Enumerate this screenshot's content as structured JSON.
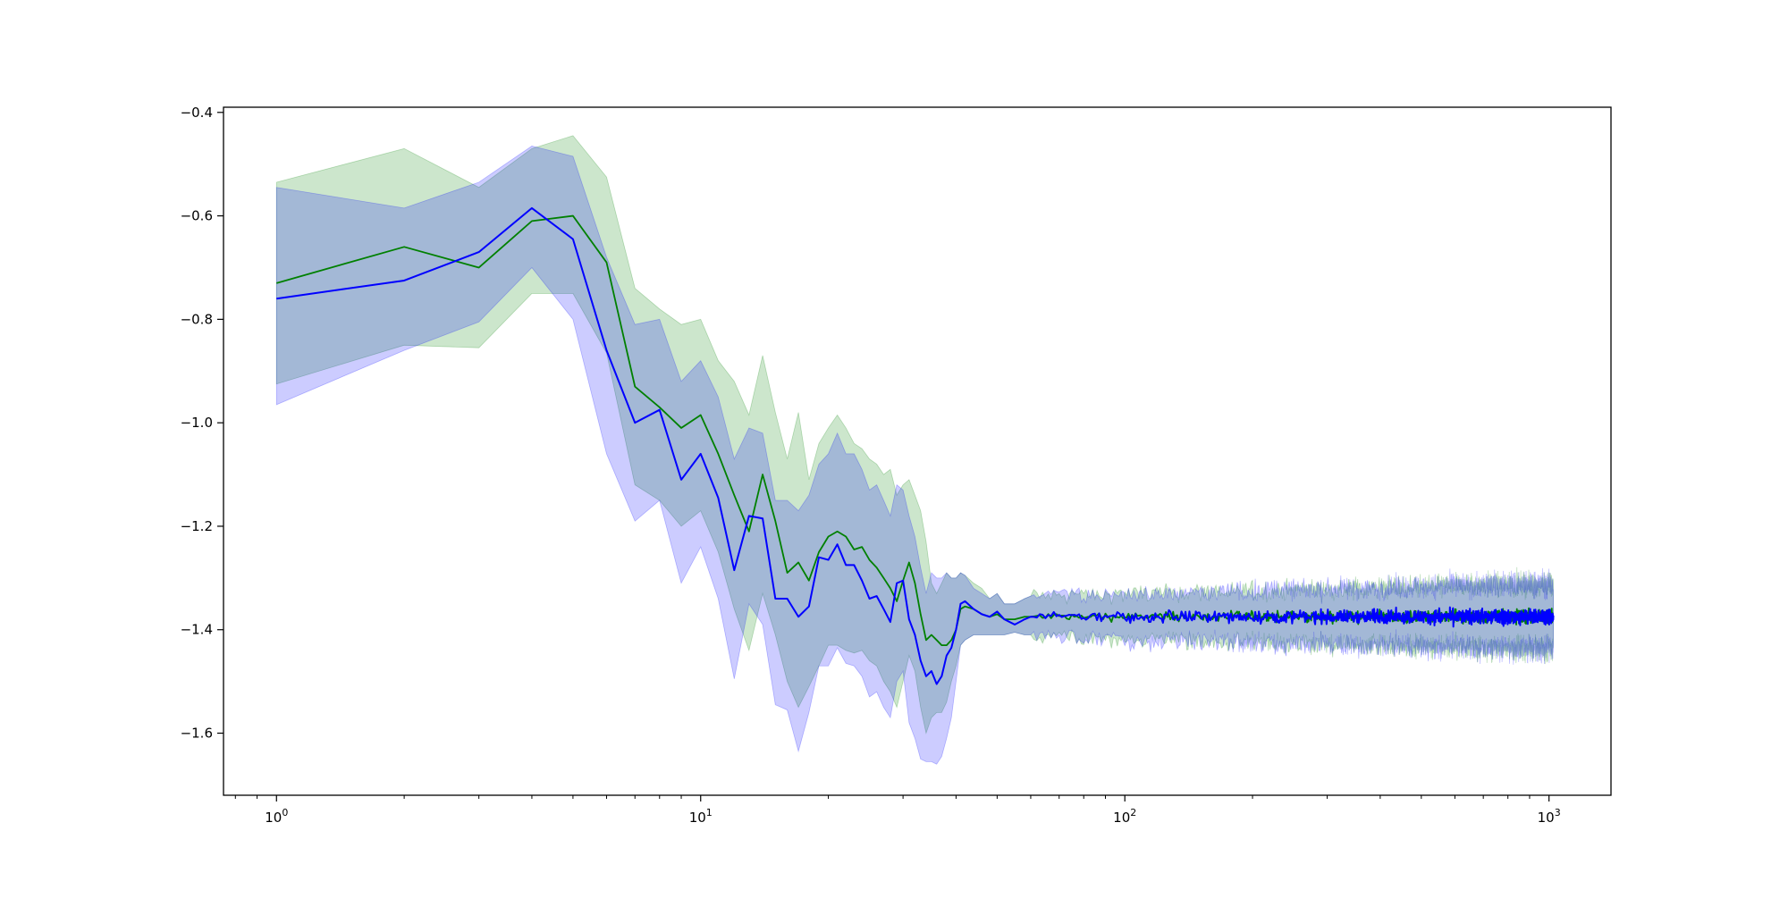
{
  "chart_data": {
    "type": "line",
    "title": "",
    "xlabel": "",
    "ylabel": "",
    "xscale": "log",
    "xlim": [
      0.75,
      1400
    ],
    "ylim": [
      -1.72,
      -0.39
    ],
    "grid": false,
    "legend": "none",
    "x_ticks": [
      {
        "value": 1,
        "base": "10",
        "exp": "0"
      },
      {
        "value": 10,
        "base": "10",
        "exp": "1"
      },
      {
        "value": 100,
        "base": "10",
        "exp": "2"
      },
      {
        "value": 1000,
        "base": "10",
        "exp": "3"
      }
    ],
    "y_ticks": [
      {
        "value": -0.4,
        "label": "−0.4"
      },
      {
        "value": -0.6,
        "label": "−0.6"
      },
      {
        "value": -0.8,
        "label": "−0.8"
      },
      {
        "value": -1.0,
        "label": "−1.0"
      },
      {
        "value": -1.2,
        "label": "−1.2"
      },
      {
        "value": -1.4,
        "label": "−1.4"
      },
      {
        "value": -1.6,
        "label": "−1.6"
      }
    ],
    "noise_region": {
      "x_start": 60,
      "x_end": 1024,
      "center": -1.375,
      "green_amplitude": 0.012,
      "blue_amplitude": 0.014,
      "band_halfwidth": 0.04
    },
    "series": [
      {
        "color": "#008000",
        "band_color": "#008000",
        "band_opacity": 0.2,
        "x": [
          1,
          2,
          3,
          4,
          5,
          6,
          7,
          8,
          9,
          10,
          11,
          12,
          13,
          14,
          15,
          16,
          17,
          18,
          19,
          20,
          21,
          22,
          23,
          24,
          25,
          26,
          27,
          28,
          29,
          30,
          31,
          32,
          33,
          34,
          35,
          36,
          37,
          38,
          39,
          40,
          41,
          42,
          44,
          46,
          48,
          50,
          52,
          55,
          58,
          60
        ],
        "y": [
          -0.73,
          -0.66,
          -0.7,
          -0.61,
          -0.6,
          -0.69,
          -0.93,
          -0.97,
          -1.01,
          -0.985,
          -1.06,
          -1.14,
          -1.21,
          -1.1,
          -1.19,
          -1.29,
          -1.27,
          -1.305,
          -1.25,
          -1.22,
          -1.21,
          -1.22,
          -1.245,
          -1.24,
          -1.265,
          -1.28,
          -1.3,
          -1.32,
          -1.345,
          -1.305,
          -1.27,
          -1.31,
          -1.37,
          -1.42,
          -1.41,
          -1.42,
          -1.43,
          -1.43,
          -1.42,
          -1.4,
          -1.36,
          -1.355,
          -1.36,
          -1.37,
          -1.375,
          -1.37,
          -1.38,
          -1.38,
          -1.375,
          -1.375
        ],
        "upper": [
          -0.535,
          -0.47,
          -0.545,
          -0.47,
          -0.445,
          -0.525,
          -0.74,
          -0.78,
          -0.81,
          -0.8,
          -0.88,
          -0.92,
          -0.985,
          -0.87,
          -0.98,
          -1.07,
          -0.98,
          -1.11,
          -1.04,
          -1.01,
          -0.985,
          -1.01,
          -1.04,
          -1.05,
          -1.07,
          -1.08,
          -1.1,
          -1.09,
          -1.14,
          -1.12,
          -1.11,
          -1.14,
          -1.17,
          -1.23,
          -1.31,
          -1.33,
          -1.31,
          -1.29,
          -1.3,
          -1.3,
          -1.29,
          -1.295,
          -1.31,
          -1.32,
          -1.34,
          -1.33,
          -1.35,
          -1.35,
          -1.34,
          -1.335
        ],
        "lower": [
          -0.925,
          -0.85,
          -0.855,
          -0.75,
          -0.75,
          -0.865,
          -1.12,
          -1.15,
          -1.2,
          -1.17,
          -1.25,
          -1.36,
          -1.44,
          -1.33,
          -1.41,
          -1.5,
          -1.55,
          -1.51,
          -1.47,
          -1.43,
          -1.43,
          -1.44,
          -1.445,
          -1.44,
          -1.46,
          -1.47,
          -1.5,
          -1.52,
          -1.55,
          -1.5,
          -1.45,
          -1.48,
          -1.55,
          -1.6,
          -1.57,
          -1.56,
          -1.56,
          -1.54,
          -1.5,
          -1.47,
          -1.43,
          -1.42,
          -1.41,
          -1.41,
          -1.41,
          -1.41,
          -1.41,
          -1.405,
          -1.41,
          -1.41
        ]
      },
      {
        "color": "#0000ff",
        "band_color": "#0000ff",
        "band_opacity": 0.2,
        "x": [
          1,
          2,
          3,
          4,
          5,
          6,
          7,
          8,
          9,
          10,
          11,
          12,
          13,
          14,
          15,
          16,
          17,
          18,
          19,
          20,
          21,
          22,
          23,
          24,
          25,
          26,
          27,
          28,
          29,
          30,
          31,
          32,
          33,
          34,
          35,
          36,
          37,
          38,
          39,
          40,
          41,
          42,
          44,
          46,
          48,
          50,
          52,
          55,
          58,
          60
        ],
        "y": [
          -0.76,
          -0.725,
          -0.67,
          -0.585,
          -0.645,
          -0.86,
          -1.0,
          -0.975,
          -1.11,
          -1.06,
          -1.145,
          -1.285,
          -1.18,
          -1.185,
          -1.34,
          -1.34,
          -1.375,
          -1.355,
          -1.26,
          -1.265,
          -1.235,
          -1.275,
          -1.275,
          -1.305,
          -1.34,
          -1.335,
          -1.36,
          -1.385,
          -1.31,
          -1.305,
          -1.38,
          -1.41,
          -1.46,
          -1.49,
          -1.48,
          -1.505,
          -1.49,
          -1.45,
          -1.435,
          -1.4,
          -1.35,
          -1.345,
          -1.36,
          -1.37,
          -1.375,
          -1.365,
          -1.38,
          -1.39,
          -1.38,
          -1.375
        ],
        "upper": [
          -0.545,
          -0.585,
          -0.535,
          -0.465,
          -0.485,
          -0.68,
          -0.81,
          -0.8,
          -0.92,
          -0.88,
          -0.95,
          -1.07,
          -1.01,
          -1.02,
          -1.15,
          -1.15,
          -1.17,
          -1.14,
          -1.08,
          -1.06,
          -1.02,
          -1.06,
          -1.06,
          -1.09,
          -1.13,
          -1.12,
          -1.15,
          -1.18,
          -1.12,
          -1.13,
          -1.18,
          -1.22,
          -1.28,
          -1.33,
          -1.29,
          -1.3,
          -1.3,
          -1.29,
          -1.3,
          -1.3,
          -1.29,
          -1.295,
          -1.32,
          -1.33,
          -1.34,
          -1.33,
          -1.35,
          -1.35,
          -1.34,
          -1.335
        ],
        "lower": [
          -0.965,
          -0.86,
          -0.805,
          -0.7,
          -0.8,
          -1.06,
          -1.19,
          -1.15,
          -1.31,
          -1.24,
          -1.34,
          -1.495,
          -1.35,
          -1.39,
          -1.545,
          -1.555,
          -1.635,
          -1.56,
          -1.47,
          -1.47,
          -1.435,
          -1.465,
          -1.47,
          -1.49,
          -1.53,
          -1.52,
          -1.55,
          -1.57,
          -1.5,
          -1.48,
          -1.58,
          -1.61,
          -1.65,
          -1.655,
          -1.655,
          -1.66,
          -1.645,
          -1.61,
          -1.57,
          -1.5,
          -1.43,
          -1.42,
          -1.41,
          -1.41,
          -1.41,
          -1.41,
          -1.41,
          -1.405,
          -1.41,
          -1.41
        ]
      }
    ]
  }
}
